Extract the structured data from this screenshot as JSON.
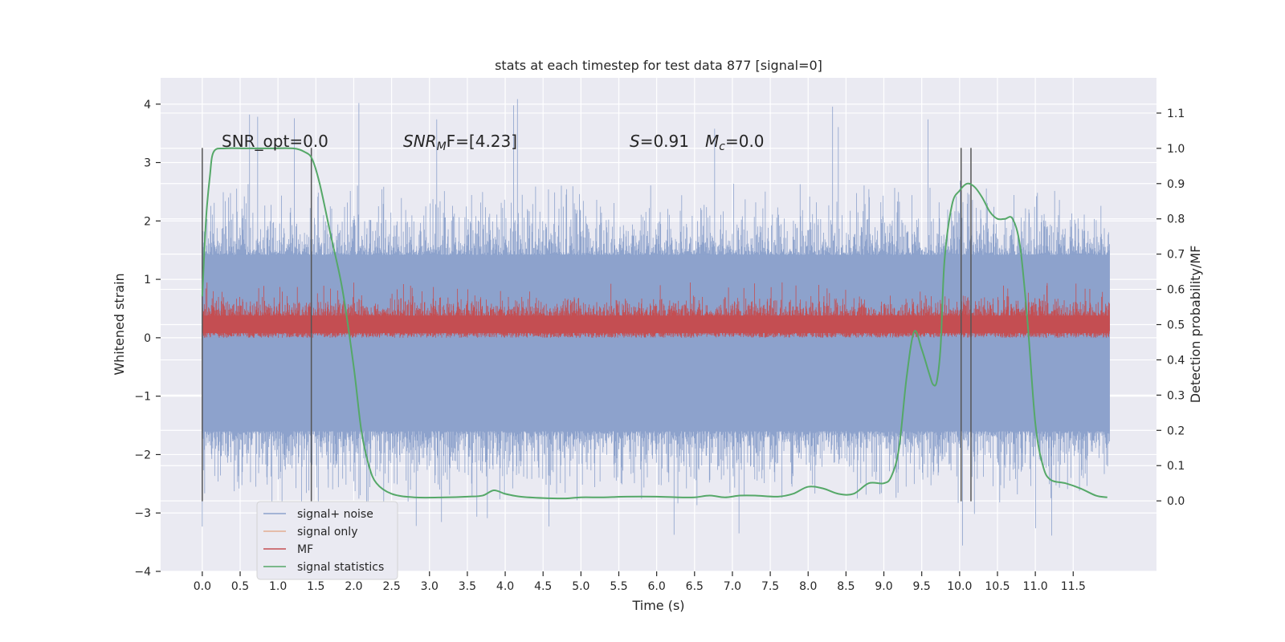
{
  "chart_data": {
    "type": "line",
    "title": "stats at each timestep for test data 877 [signal=0]",
    "xlabel": "Time (s)",
    "ylabel": "Whitened strain",
    "ylabel_right": "Detection probability/MF",
    "xlim": [
      -0.55,
      12.6
    ],
    "ylim": [
      -4.0,
      4.45
    ],
    "ylim_right": [
      -0.2,
      1.2
    ],
    "x_ticks": [
      0.0,
      0.5,
      1.0,
      1.5,
      2.0,
      2.5,
      3.0,
      3.5,
      4.0,
      4.5,
      5.0,
      5.5,
      6.0,
      6.5,
      7.0,
      7.5,
      8.0,
      8.5,
      9.0,
      9.5,
      10.0,
      10.5,
      11.0,
      11.5
    ],
    "x_tick_labels": [
      "0.0",
      "0.5",
      "1.0",
      "1.5",
      "2.0",
      "2.5",
      "3.0",
      "3.5",
      "4.0",
      "4.5",
      "5.0",
      "5.5",
      "6.0",
      "6.5",
      "7.0",
      "7.5",
      "8.0",
      "8.5",
      "9.0",
      "9.5",
      "10.0",
      "10.5",
      "11.0",
      "11.5"
    ],
    "y_ticks": [
      -4,
      -3,
      -2,
      -1,
      0,
      1,
      2,
      3,
      4
    ],
    "y_tick_labels": [
      "−4",
      "−3",
      "−2",
      "−1",
      "0",
      "1",
      "2",
      "3",
      "4"
    ],
    "y_right_ticks": [
      0.0,
      0.1,
      0.2,
      0.3,
      0.4,
      0.5,
      0.6,
      0.7,
      0.8,
      0.9,
      1.0,
      1.1
    ],
    "y_right_tick_labels": [
      "0.0",
      "0.1",
      "0.2",
      "0.3",
      "0.4",
      "0.5",
      "0.6",
      "0.7",
      "0.8",
      "0.9",
      "1.0",
      "1.1"
    ],
    "grid": true,
    "legend_placement": "lower-left",
    "annotations": {
      "snr_opt": "SNR_opt=0.0",
      "snr_mf_prefix": "SNR",
      "snr_mf_sub": "M",
      "snr_mf_suffix": "F=[4.23]",
      "s_label": "S",
      "s_value": "=0.91",
      "mc_label": "M",
      "mc_sub": "c",
      "mc_value": "=0.0"
    },
    "vertical_lines_x": [
      0.0,
      1.44,
      10.02,
      10.15
    ],
    "vertical_lines_yrange": [
      -2.8,
      3.25
    ],
    "series": [
      {
        "name": "signal+ noise",
        "color": "#8da2cc",
        "axis": "left",
        "x_range": [
          0.0,
          11.98
        ],
        "spread": {
          "core_min": -1.6,
          "core_max": 1.42,
          "extreme_min": -3.6,
          "extreme_max": 4.1
        }
      },
      {
        "name": "signal only",
        "color": "#dd8452",
        "axis": "left",
        "x": [],
        "y": []
      },
      {
        "name": "MF",
        "color": "#c44e52",
        "axis": "left",
        "x_range": [
          0.0,
          11.98
        ],
        "spread": {
          "min": 0.0,
          "max": 0.95,
          "center": 0.25
        }
      },
      {
        "name": "signal statistics",
        "color": "#55a868",
        "axis": "right",
        "x": [
          0.0,
          0.05,
          0.1,
          0.15,
          0.3,
          0.6,
          0.9,
          1.2,
          1.35,
          1.45,
          1.55,
          1.7,
          1.85,
          2.0,
          2.1,
          2.2,
          2.3,
          2.5,
          2.8,
          3.2,
          3.5,
          3.7,
          3.85,
          4.0,
          4.2,
          4.5,
          4.8,
          5.0,
          5.3,
          5.6,
          6.0,
          6.3,
          6.5,
          6.7,
          6.9,
          7.1,
          7.3,
          7.6,
          7.8,
          8.0,
          8.2,
          8.4,
          8.6,
          8.8,
          9.0,
          9.1,
          9.2,
          9.3,
          9.4,
          9.5,
          9.6,
          9.65,
          9.7,
          9.75,
          9.8,
          9.9,
          10.0,
          10.1,
          10.2,
          10.3,
          10.4,
          10.5,
          10.6,
          10.7,
          10.8,
          10.9,
          11.0,
          11.1,
          11.2,
          11.4,
          11.6,
          11.8,
          11.95
        ],
        "y": [
          0.58,
          0.8,
          0.92,
          0.99,
          1.0,
          1.0,
          1.0,
          1.0,
          0.99,
          0.97,
          0.9,
          0.75,
          0.6,
          0.38,
          0.2,
          0.1,
          0.05,
          0.02,
          0.01,
          0.01,
          0.012,
          0.015,
          0.03,
          0.02,
          0.012,
          0.008,
          0.007,
          0.01,
          0.01,
          0.012,
          0.012,
          0.01,
          0.01,
          0.015,
          0.01,
          0.015,
          0.015,
          0.012,
          0.02,
          0.04,
          0.035,
          0.02,
          0.02,
          0.05,
          0.05,
          0.07,
          0.15,
          0.35,
          0.48,
          0.43,
          0.36,
          0.33,
          0.34,
          0.44,
          0.68,
          0.84,
          0.88,
          0.9,
          0.89,
          0.86,
          0.82,
          0.8,
          0.8,
          0.8,
          0.72,
          0.5,
          0.22,
          0.1,
          0.06,
          0.05,
          0.035,
          0.015,
          0.01
        ]
      }
    ]
  }
}
